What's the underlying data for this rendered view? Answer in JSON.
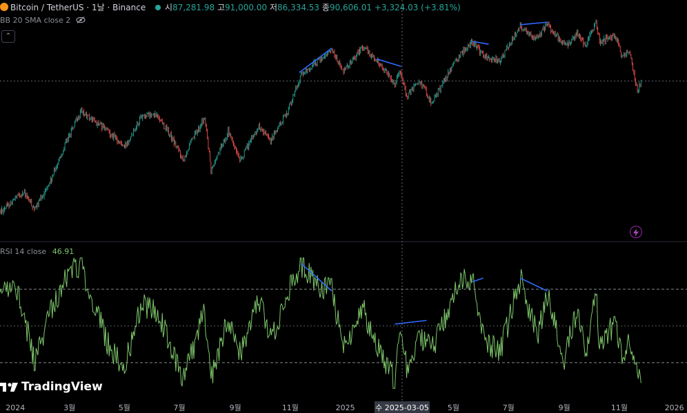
{
  "header": {
    "symbol": "Bitcoin / TetherUS · 1날 · Binance",
    "open_label": "시",
    "open": "87,281.98",
    "high_label": "고",
    "high": "91,000.00",
    "low_label": "저",
    "low": "86,334.53",
    "close_label": "종",
    "close": "90,606.01",
    "change": "+3,324.03 (+3.81%)",
    "status_color": "#26a69a"
  },
  "indicators": {
    "bb": "BB 20 SMA close 2",
    "rsi_name": "RSI 14 close",
    "rsi_value": "46.91"
  },
  "crosshair": {
    "date_label": "수 2025-03-05"
  },
  "brand": {
    "name": "TradingView"
  },
  "icons": [
    "eye-slash-icon",
    "chevron-up-icon",
    "lightning-icon",
    "tradingview-logo-icon"
  ],
  "colors": {
    "up": "#26a69a",
    "down": "#ef5350",
    "rsi": "#7ec86b",
    "trendline": "#2f6bff",
    "background": "#000000"
  },
  "chart_data": [
    {
      "type": "candlestick",
      "title": "Bitcoin / TetherUS · 1날 · Binance",
      "x_ticks": [
        "2024",
        "3월",
        "5월",
        "7월",
        "9월",
        "11월",
        "2025",
        "5월",
        "7월",
        "9월",
        "11월",
        "2026"
      ],
      "x_range": [
        "2023-12-15",
        "2026-01-15"
      ],
      "price_path": [
        [
          "2023-12-15",
          39000
        ],
        [
          "2024-01-10",
          44000
        ],
        [
          "2024-01-23",
          39500
        ],
        [
          "2024-02-10",
          47500
        ],
        [
          "2024-02-28",
          61000
        ],
        [
          "2024-03-14",
          72000
        ],
        [
          "2024-04-13",
          64000
        ],
        [
          "2024-05-01",
          58000
        ],
        [
          "2024-05-21",
          71000
        ],
        [
          "2024-06-07",
          70500
        ],
        [
          "2024-07-05",
          54000
        ],
        [
          "2024-07-29",
          69500
        ],
        [
          "2024-08-05",
          50000
        ],
        [
          "2024-08-24",
          64000
        ],
        [
          "2024-09-06",
          53000
        ],
        [
          "2024-09-27",
          66000
        ],
        [
          "2024-10-10",
          60000
        ],
        [
          "2024-10-29",
          72500
        ],
        [
          "2024-11-13",
          90000
        ],
        [
          "2024-12-05",
          100000
        ],
        [
          "2024-12-17",
          106000
        ],
        [
          "2024-12-30",
          92000
        ],
        [
          "2025-01-20",
          108000
        ],
        [
          "2025-02-03",
          100000
        ],
        [
          "2025-02-25",
          86000
        ],
        [
          "2025-03-02",
          94000
        ],
        [
          "2025-03-10",
          79000
        ],
        [
          "2025-03-24",
          88000
        ],
        [
          "2025-04-07",
          76000
        ],
        [
          "2025-05-09",
          103000
        ],
        [
          "2025-05-22",
          111000
        ],
        [
          "2025-06-05",
          101000
        ],
        [
          "2025-06-22",
          99000
        ],
        [
          "2025-07-14",
          122000
        ],
        [
          "2025-08-02",
          113000
        ],
        [
          "2025-08-13",
          124000
        ],
        [
          "2025-09-01",
          108000
        ],
        [
          "2025-09-15",
          116000
        ],
        [
          "2025-09-25",
          109000
        ],
        [
          "2025-10-06",
          126000
        ],
        [
          "2025-10-10",
          111000
        ],
        [
          "2025-10-27",
          116000
        ],
        [
          "2025-11-04",
          101000
        ],
        [
          "2025-11-11",
          106000
        ],
        [
          "2025-11-21",
          82000
        ],
        [
          "2025-11-25",
          87000
        ]
      ],
      "crosshair_price": 87281.98
    },
    {
      "type": "line",
      "title": "RSI 14 close",
      "series": [
        {
          "name": "RSI 14 close",
          "path": [
            [
              "2023-12-15",
              65
            ],
            [
              "2024-01-01",
              75
            ],
            [
              "2024-01-23",
              30
            ],
            [
              "2024-02-10",
              60
            ],
            [
              "2024-03-05",
              83
            ],
            [
              "2024-03-14",
              82
            ],
            [
              "2024-04-13",
              40
            ],
            [
              "2024-05-01",
              28
            ],
            [
              "2024-05-21",
              62
            ],
            [
              "2024-06-07",
              58
            ],
            [
              "2024-07-05",
              20
            ],
            [
              "2024-07-29",
              58
            ],
            [
              "2024-08-05",
              22
            ],
            [
              "2024-08-24",
              55
            ],
            [
              "2024-09-06",
              35
            ],
            [
              "2024-09-27",
              66
            ],
            [
              "2024-10-10",
              42
            ],
            [
              "2024-10-29",
              68
            ],
            [
              "2024-11-13",
              83
            ],
            [
              "2024-12-05",
              70
            ],
            [
              "2024-12-17",
              69
            ],
            [
              "2024-12-30",
              38
            ],
            [
              "2025-01-20",
              60
            ],
            [
              "2025-02-03",
              42
            ],
            [
              "2025-02-25",
              20
            ],
            [
              "2025-03-02",
              52
            ],
            [
              "2025-03-10",
              28
            ],
            [
              "2025-03-24",
              45
            ],
            [
              "2025-04-07",
              37
            ],
            [
              "2025-05-09",
              74
            ],
            [
              "2025-05-22",
              75
            ],
            [
              "2025-06-05",
              40
            ],
            [
              "2025-06-22",
              36
            ],
            [
              "2025-07-14",
              76
            ],
            [
              "2025-08-02",
              44
            ],
            [
              "2025-08-13",
              67
            ],
            [
              "2025-09-01",
              32
            ],
            [
              "2025-09-15",
              58
            ],
            [
              "2025-09-25",
              35
            ],
            [
              "2025-10-06",
              73
            ],
            [
              "2025-10-10",
              37
            ],
            [
              "2025-10-27",
              52
            ],
            [
              "2025-11-04",
              31
            ],
            [
              "2025-11-11",
              40
            ],
            [
              "2025-11-21",
              22
            ],
            [
              "2025-11-25",
              25
            ]
          ]
        }
      ],
      "levels": [
        70,
        50,
        30
      ],
      "ylim": [
        15,
        88
      ],
      "current_value": 46.91
    }
  ],
  "trendlines": {
    "price": [
      [
        [
          "2024-11-11",
          92000
        ],
        [
          "2024-12-17",
          107000
        ]
      ],
      [
        [
          "2025-02-05",
          100000
        ],
        [
          "2025-03-04",
          95500
        ]
      ],
      [
        [
          "2025-05-22",
          111500
        ],
        [
          "2025-06-09",
          109500
        ]
      ],
      [
        [
          "2025-07-14",
          123500
        ],
        [
          "2025-08-14",
          125500
        ]
      ]
    ],
    "rsi": [
      [
        [
          "2024-11-13",
          84
        ],
        [
          "2024-12-17",
          69
        ]
      ],
      [
        [
          "2025-02-25",
          51
        ],
        [
          "2025-04-01",
          53
        ]
      ],
      [
        [
          "2025-05-22",
          74
        ],
        [
          "2025-06-03",
          76
        ]
      ],
      [
        [
          "2025-07-14",
          76
        ],
        [
          "2025-08-13",
          69
        ]
      ]
    ]
  }
}
